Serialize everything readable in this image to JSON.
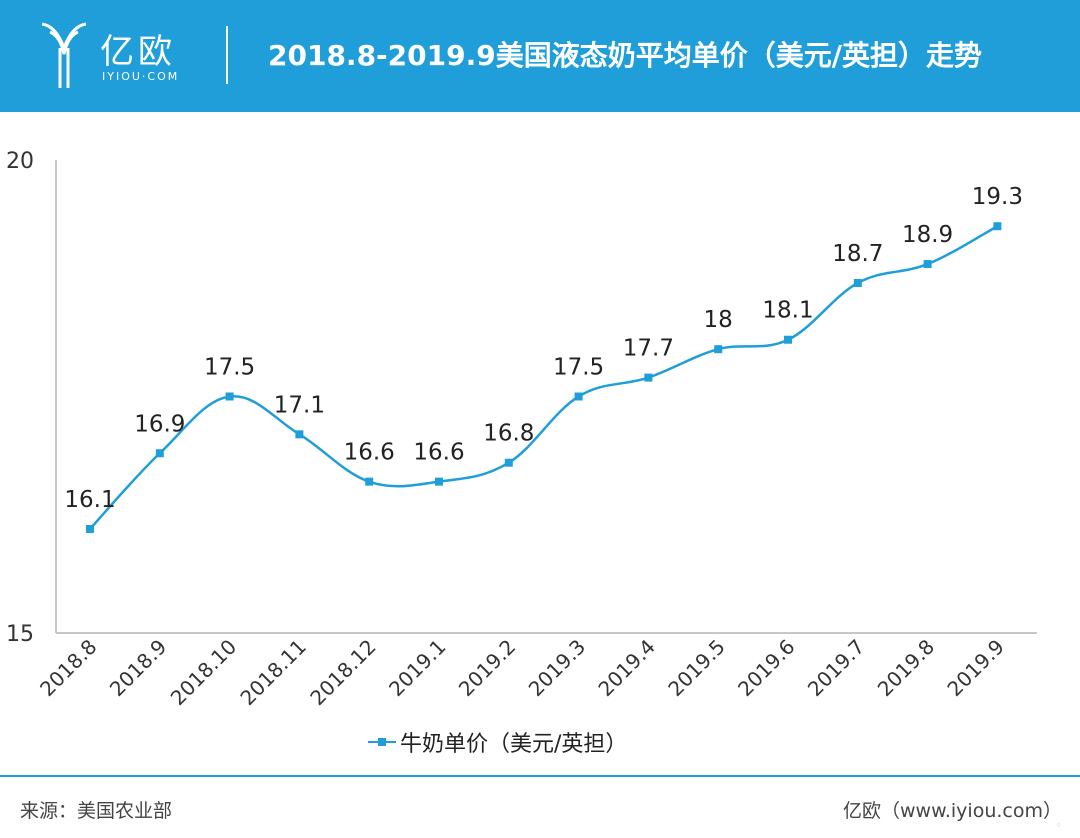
{
  "header": {
    "logo_text": "亿欧",
    "logo_sub": "IYIOU·COM",
    "title": "2018.8-2019.9美国液态奶平均单价（美元/英担）走势"
  },
  "chart_data": {
    "type": "line",
    "categories": [
      "2018.8",
      "2018.9",
      "2018.10",
      "2018.11",
      "2018.12",
      "2019.1",
      "2019.2",
      "2019.3",
      "2019.4",
      "2019.5",
      "2019.6",
      "2019.7",
      "2019.8",
      "2019.9"
    ],
    "series": [
      {
        "name": "牛奶单价（美元/英担）",
        "values": [
          16.1,
          16.9,
          17.5,
          17.1,
          16.6,
          16.6,
          16.8,
          17.5,
          17.7,
          18,
          18.1,
          18.7,
          18.9,
          19.3
        ],
        "labels": [
          "16.1",
          "16.9",
          "17.5",
          "17.1",
          "16.6",
          "16.6",
          "16.8",
          "17.5",
          "17.7",
          "18",
          "18.1",
          "18.7",
          "18.9",
          "19.3"
        ]
      }
    ],
    "ylim": [
      15,
      20
    ],
    "yticks": [
      "15",
      "20"
    ],
    "grid": false,
    "legend": "bottom",
    "line_color": "#1f9ed9"
  },
  "legend": {
    "label": "牛奶单价（美元/英担）"
  },
  "footer": {
    "source": "来源：美国农业部",
    "credit": "亿欧（www.iyiou.com）"
  },
  "colors": {
    "brand": "#1f9ed9"
  }
}
